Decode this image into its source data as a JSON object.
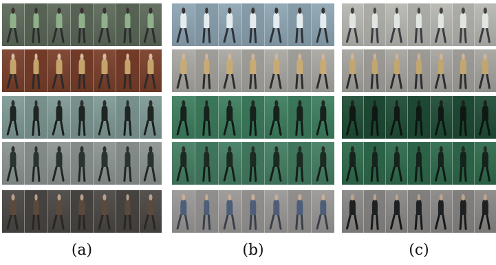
{
  "panels": [
    {
      "caption": "(a)",
      "rows": [
        {
          "bg": "#5d6a5a",
          "torso": "#8fb08a",
          "legs": "#2a2d2c",
          "head": "#3a3130"
        },
        {
          "bg": "#7a3f2b",
          "torso": "#c4a46a",
          "legs": "#2c2a2a",
          "head": "#d8b8a0"
        },
        {
          "bg": "#7f9a96",
          "torso": "#1e2522",
          "legs": "#1a1e1c",
          "head": "#2a2f2d"
        },
        {
          "bg": "#8c9592",
          "torso": "#2a3330",
          "legs": "#1f2624",
          "head": "#2b302e"
        },
        {
          "bg": "#4a4744",
          "torso": "#5b4a3c",
          "legs": "#2a2624",
          "head": "#b8a08a"
        }
      ]
    },
    {
      "caption": "(b)",
      "rows": [
        {
          "bg": "#8ea6b4",
          "torso": "#e4ecef",
          "legs": "#2d3138",
          "head": "#3a3432"
        },
        {
          "bg": "#a9a7a2",
          "torso": "#c8ab74",
          "legs": "#2d2c2c",
          "head": "#d0b49c"
        },
        {
          "bg": "#3e7e5e",
          "torso": "#17221c",
          "legs": "#121a16",
          "head": "#1f2822"
        },
        {
          "bg": "#447e62",
          "torso": "#1c2a22",
          "legs": "#151e19",
          "head": "#26302a"
        },
        {
          "bg": "#9a9896",
          "torso": "#4e5d78",
          "legs": "#3a3f4a",
          "head": "#c7ad96"
        }
      ]
    },
    {
      "caption": "(c)",
      "rows": [
        {
          "bg": "#b7b8b2",
          "torso": "#e2e6e2",
          "legs": "#3a3c40",
          "head": "#4a403c"
        },
        {
          "bg": "#a6a49f",
          "torso": "#c2a66f",
          "legs": "#2c2c2e",
          "head": "#cfb49a"
        },
        {
          "bg": "#1f4d36",
          "torso": "#101814",
          "legs": "#0c1410",
          "head": "#1a221d"
        },
        {
          "bg": "#2f6b4c",
          "torso": "#16221c",
          "legs": "#101a15",
          "head": "#202b25"
        },
        {
          "bg": "#8a8886",
          "torso": "#1f2022",
          "legs": "#17181a",
          "head": "#bda48d"
        }
      ]
    }
  ],
  "frames_per_strip": 7
}
